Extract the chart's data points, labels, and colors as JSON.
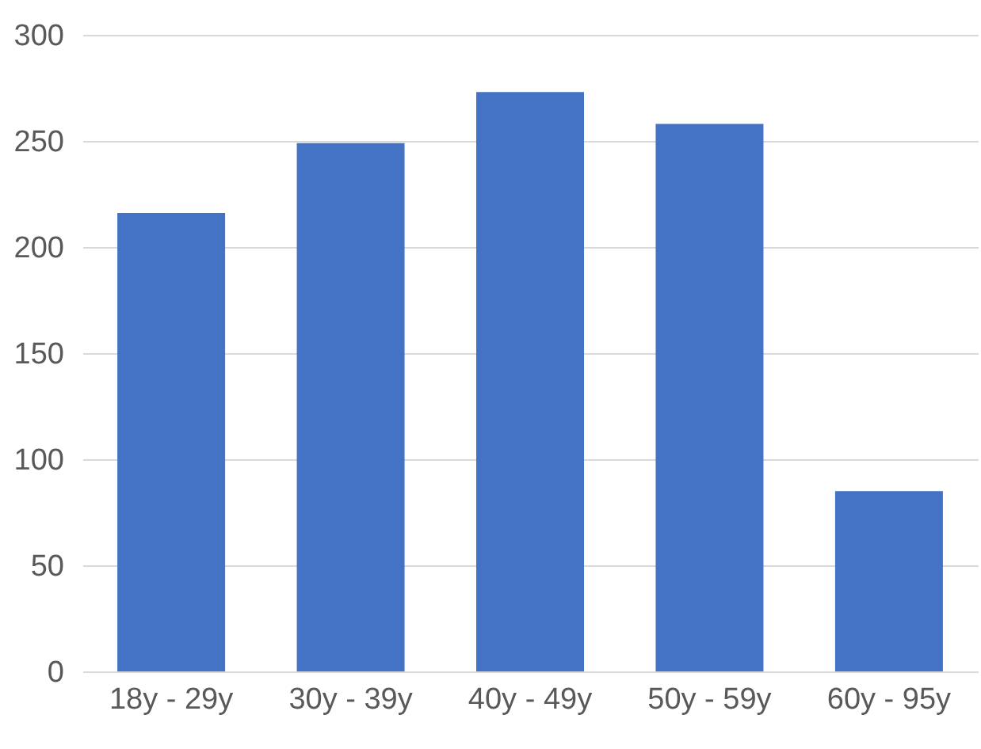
{
  "chart_data": {
    "type": "bar",
    "categories": [
      "18y - 29y",
      "30y - 39y",
      "40y - 49y",
      "50y - 59y",
      "60y - 95y"
    ],
    "values": [
      216,
      249,
      273,
      258,
      85
    ],
    "color": "#4472c4",
    "ylim": [
      0,
      300
    ],
    "yticks": [
      0,
      50,
      100,
      150,
      200,
      250,
      300
    ],
    "grid": "y"
  }
}
